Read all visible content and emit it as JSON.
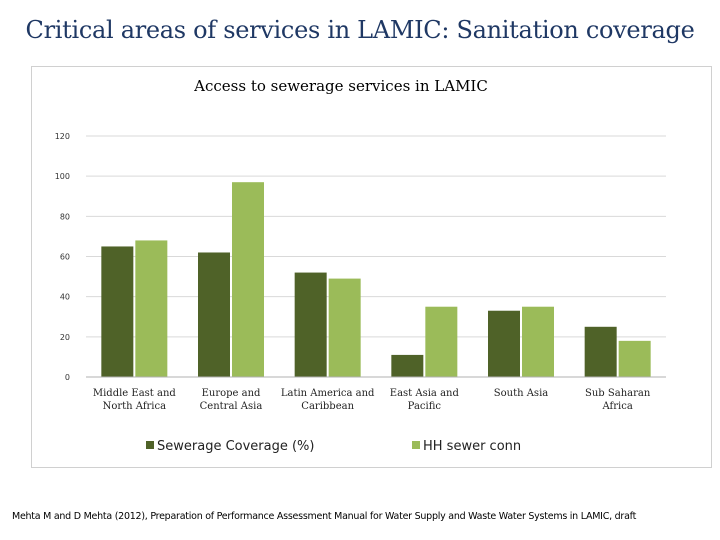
{
  "slide": {
    "title": "Critical areas of services in LAMIC: Sanitation coverage",
    "citation": "Mehta M and D Mehta (2012), Preparation of Performance Assessment Manual for Water Supply and Waste Water Systems in LAMIC, draft"
  },
  "colors": {
    "series1": "#4f6228",
    "series2": "#9bbb59",
    "gridline": "#d9d9d9",
    "title": "#1f3864"
  },
  "chart_data": {
    "type": "bar",
    "title": "Access to sewerage services in LAMIC",
    "xlabel": "",
    "ylabel": "",
    "ylim": [
      0,
      120
    ],
    "yticks": [
      0,
      20,
      40,
      60,
      80,
      100,
      120
    ],
    "grid": true,
    "legend_position": "bottom",
    "categories": [
      [
        "Middle East and",
        "North Africa"
      ],
      [
        "Europe and",
        "Central Asia"
      ],
      [
        "Latin America and",
        "Caribbean"
      ],
      [
        "East Asia and",
        "Pacific"
      ],
      [
        "South Asia"
      ],
      [
        "Sub Saharan",
        "Africa"
      ]
    ],
    "series": [
      {
        "name": "Sewerage Coverage (%)",
        "values": [
          65,
          62,
          52,
          11,
          33,
          25
        ]
      },
      {
        "name": "HH sewer conn",
        "values": [
          68,
          97,
          49,
          35,
          35,
          18
        ]
      }
    ]
  }
}
